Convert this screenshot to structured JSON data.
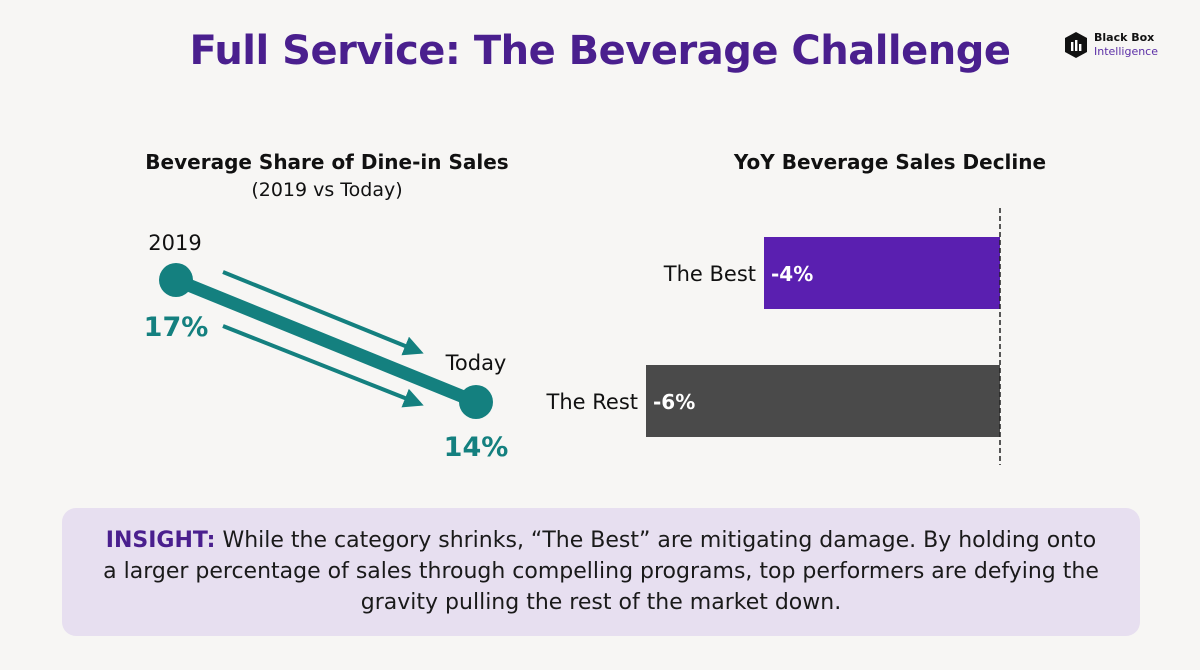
{
  "title": "Full Service: The Beverage Challenge",
  "logo": {
    "line1": "Black Box",
    "line2": "Intelligence"
  },
  "colors": {
    "title": "#4a1f8e",
    "teal": "#14807f",
    "best_bar": "#5a1fb0",
    "rest_bar": "#4a4a4a",
    "insight_bg": "#e7dff0"
  },
  "chart_data": [
    {
      "type": "line",
      "title": "Beverage Share of Dine-in Sales",
      "subtitle": "(2019 vs Today)",
      "categories": [
        "2019",
        "Today"
      ],
      "values": [
        17,
        14
      ],
      "value_labels": [
        "17%",
        "14%"
      ],
      "unit": "%"
    },
    {
      "type": "bar",
      "orientation": "horizontal",
      "title": "YoY Beverage Sales Decline",
      "categories": [
        "The Best",
        "The Rest"
      ],
      "values": [
        -4,
        -6
      ],
      "value_labels": [
        "-4%",
        "-6%"
      ],
      "xlim": [
        -7,
        0
      ],
      "reference_line_at": 0
    }
  ],
  "insight": {
    "keyword": "INSIGHT:",
    "text": " While the category shrinks, “The Best” are mitigating damage. By holding onto a larger percentage of sales through compelling programs, top performers are defying the gravity pulling the rest of the market down."
  }
}
